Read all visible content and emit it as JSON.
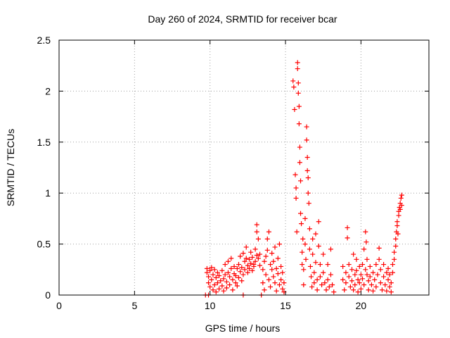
{
  "chart_data": {
    "type": "scatter",
    "title": "Day 260 of 2024, SRMTID for receiver bcar",
    "xlabel": "GPS time / hours",
    "ylabel": "SRMTID / TECUs",
    "xlim": [
      0,
      24.5
    ],
    "ylim": [
      0,
      2.5
    ],
    "xticks": [
      0,
      5,
      10,
      15,
      20
    ],
    "xtick_labels": [
      "0",
      "5",
      "10",
      "15",
      "20"
    ],
    "yticks": [
      0,
      0.5,
      1,
      1.5,
      2,
      2.5
    ],
    "ytick_labels": [
      "0",
      "0.5",
      "1",
      "1.5",
      "2",
      "2.5"
    ],
    "grid": true,
    "marker": "+",
    "color": "#ff0000",
    "series": [
      {
        "name": "bcar",
        "points": [
          [
            9.7,
            0.0
          ],
          [
            9.9,
            0.0
          ],
          [
            12.2,
            0.0
          ],
          [
            13.4,
            0.0
          ],
          [
            9.8,
            0.26
          ],
          [
            9.8,
            0.22
          ],
          [
            9.9,
            0.18
          ],
          [
            9.9,
            0.12
          ],
          [
            10.0,
            0.08
          ],
          [
            10.0,
            0.24
          ],
          [
            10.1,
            0.27
          ],
          [
            10.1,
            0.15
          ],
          [
            10.2,
            0.05
          ],
          [
            10.2,
            0.2
          ],
          [
            10.3,
            0.1
          ],
          [
            10.3,
            0.25
          ],
          [
            10.4,
            0.17
          ],
          [
            10.4,
            0.03
          ],
          [
            10.5,
            0.22
          ],
          [
            10.5,
            0.12
          ],
          [
            10.6,
            0.06
          ],
          [
            10.6,
            0.19
          ],
          [
            10.7,
            0.14
          ],
          [
            10.8,
            0.09
          ],
          [
            10.8,
            0.24
          ],
          [
            10.9,
            0.16
          ],
          [
            10.9,
            0.04
          ],
          [
            11.0,
            0.2
          ],
          [
            11.0,
            0.3
          ],
          [
            11.1,
            0.13
          ],
          [
            11.1,
            0.07
          ],
          [
            11.2,
            0.22
          ],
          [
            11.2,
            0.33
          ],
          [
            11.3,
            0.18
          ],
          [
            11.3,
            0.1
          ],
          [
            11.4,
            0.26
          ],
          [
            11.4,
            0.36
          ],
          [
            11.5,
            0.15
          ],
          [
            11.5,
            0.05
          ],
          [
            11.6,
            0.21
          ],
          [
            11.6,
            0.28
          ],
          [
            11.7,
            0.12
          ],
          [
            11.7,
            0.19
          ],
          [
            11.8,
            0.26
          ],
          [
            11.8,
            0.09
          ],
          [
            11.9,
            0.3
          ],
          [
            11.9,
            0.17
          ],
          [
            12.0,
            0.23
          ],
          [
            12.0,
            0.38
          ],
          [
            12.1,
            0.14
          ],
          [
            12.1,
            0.27
          ],
          [
            12.2,
            0.2
          ],
          [
            12.2,
            0.41
          ],
          [
            12.3,
            0.33
          ],
          [
            12.3,
            0.25
          ],
          [
            12.4,
            0.36
          ],
          [
            12.4,
            0.47
          ],
          [
            12.5,
            0.29
          ],
          [
            12.5,
            0.22
          ],
          [
            12.6,
            0.35
          ],
          [
            12.6,
            0.26
          ],
          [
            12.7,
            0.31
          ],
          [
            12.7,
            0.42
          ],
          [
            12.8,
            0.24
          ],
          [
            12.8,
            0.37
          ],
          [
            12.9,
            0.3
          ],
          [
            12.9,
            0.28
          ],
          [
            13.0,
            0.33
          ],
          [
            13.0,
            0.45
          ],
          [
            13.1,
            0.39
          ],
          [
            13.1,
            0.69
          ],
          [
            13.1,
            0.62
          ],
          [
            13.2,
            0.55
          ],
          [
            13.2,
            0.36
          ],
          [
            13.3,
            0.4
          ],
          [
            13.3,
            0.29
          ],
          [
            13.5,
            0.25
          ],
          [
            13.5,
            0.12
          ],
          [
            13.6,
            0.33
          ],
          [
            13.6,
            0.05
          ],
          [
            13.7,
            0.2
          ],
          [
            13.7,
            0.38
          ],
          [
            13.8,
            0.55
          ],
          [
            13.8,
            0.44
          ],
          [
            13.9,
            0.62
          ],
          [
            13.9,
            0.15
          ],
          [
            14.0,
            0.3
          ],
          [
            14.0,
            0.08
          ],
          [
            14.1,
            0.25
          ],
          [
            14.1,
            0.41
          ],
          [
            14.2,
            0.18
          ],
          [
            14.2,
            0.33
          ],
          [
            14.3,
            0.47
          ],
          [
            14.3,
            0.12
          ],
          [
            14.4,
            0.26
          ],
          [
            14.4,
            0.04
          ],
          [
            14.5,
            0.21
          ],
          [
            14.5,
            0.36
          ],
          [
            14.6,
            0.5
          ],
          [
            14.6,
            0.1
          ],
          [
            14.7,
            0.28
          ],
          [
            14.7,
            0.15
          ],
          [
            14.8,
            0.06
          ],
          [
            14.8,
            0.22
          ],
          [
            14.9,
            0.03
          ],
          [
            14.9,
            0.12
          ],
          [
            15.5,
            2.1
          ],
          [
            15.55,
            2.04
          ],
          [
            15.6,
            1.82
          ],
          [
            15.65,
            1.18
          ],
          [
            15.7,
            1.05
          ],
          [
            15.7,
            0.95
          ],
          [
            15.75,
            0.62
          ],
          [
            15.8,
            2.28
          ],
          [
            15.8,
            2.22
          ],
          [
            15.85,
            2.08
          ],
          [
            15.85,
            1.98
          ],
          [
            15.9,
            1.85
          ],
          [
            15.9,
            1.68
          ],
          [
            15.95,
            1.45
          ],
          [
            15.95,
            1.3
          ],
          [
            16.0,
            1.12
          ],
          [
            16.0,
            0.8
          ],
          [
            16.05,
            0.7
          ],
          [
            16.1,
            0.42
          ],
          [
            16.1,
            0.3
          ],
          [
            16.15,
            0.55
          ],
          [
            16.2,
            0.25
          ],
          [
            16.2,
            0.1
          ],
          [
            16.3,
            0.75
          ],
          [
            16.3,
            0.5
          ],
          [
            16.35,
            0.35
          ],
          [
            16.4,
            1.65
          ],
          [
            16.4,
            1.52
          ],
          [
            16.45,
            1.35
          ],
          [
            16.45,
            1.22
          ],
          [
            16.5,
            1.15
          ],
          [
            16.5,
            1.0
          ],
          [
            16.55,
            0.9
          ],
          [
            16.6,
            0.65
          ],
          [
            16.6,
            0.45
          ],
          [
            16.65,
            0.28
          ],
          [
            16.7,
            0.18
          ],
          [
            16.75,
            0.08
          ],
          [
            16.8,
            0.55
          ],
          [
            16.8,
            0.4
          ],
          [
            16.9,
            0.22
          ],
          [
            16.9,
            0.12
          ],
          [
            17.0,
            0.6
          ],
          [
            17.0,
            0.32
          ],
          [
            17.1,
            0.15
          ],
          [
            17.1,
            0.05
          ],
          [
            17.2,
            0.72
          ],
          [
            17.2,
            0.48
          ],
          [
            17.3,
            0.3
          ],
          [
            17.3,
            0.18
          ],
          [
            17.4,
            0.1
          ],
          [
            17.5,
            0.4
          ],
          [
            17.5,
            0.22
          ],
          [
            17.6,
            0.12
          ],
          [
            17.7,
            0.05
          ],
          [
            17.8,
            0.3
          ],
          [
            17.8,
            0.15
          ],
          [
            17.9,
            0.08
          ],
          [
            18.0,
            0.45
          ],
          [
            18.0,
            0.2
          ],
          [
            18.1,
            0.1
          ],
          [
            18.2,
            0.03
          ],
          [
            18.8,
            0.28
          ],
          [
            18.8,
            0.15
          ],
          [
            18.9,
            0.05
          ],
          [
            19.0,
            0.22
          ],
          [
            19.0,
            0.12
          ],
          [
            19.1,
            0.66
          ],
          [
            19.1,
            0.56
          ],
          [
            19.2,
            0.3
          ],
          [
            19.2,
            0.18
          ],
          [
            19.3,
            0.08
          ],
          [
            19.4,
            0.25
          ],
          [
            19.4,
            0.14
          ],
          [
            19.5,
            0.4
          ],
          [
            19.5,
            0.05
          ],
          [
            19.6,
            0.2
          ],
          [
            19.6,
            0.1
          ],
          [
            19.7,
            0.35
          ],
          [
            19.7,
            0.24
          ],
          [
            19.8,
            0.15
          ],
          [
            19.8,
            0.03
          ],
          [
            19.9,
            0.28
          ],
          [
            19.9,
            0.12
          ],
          [
            20.0,
            0.2
          ],
          [
            20.0,
            0.06
          ],
          [
            20.1,
            0.3
          ],
          [
            20.1,
            0.16
          ],
          [
            20.2,
            0.45
          ],
          [
            20.2,
            0.1
          ],
          [
            20.3,
            0.25
          ],
          [
            20.3,
            0.62
          ],
          [
            20.35,
            0.52
          ],
          [
            20.4,
            0.35
          ],
          [
            20.4,
            0.2
          ],
          [
            20.5,
            0.14
          ],
          [
            20.5,
            0.05
          ],
          [
            20.6,
            0.28
          ],
          [
            20.6,
            0.18
          ],
          [
            20.7,
            0.1
          ],
          [
            20.8,
            0.22
          ],
          [
            20.8,
            0.04
          ],
          [
            20.9,
            0.15
          ],
          [
            21.0,
            0.3
          ],
          [
            21.0,
            0.08
          ],
          [
            21.1,
            0.2
          ],
          [
            21.2,
            0.46
          ],
          [
            21.2,
            0.35
          ],
          [
            21.3,
            0.12
          ],
          [
            21.3,
            0.25
          ],
          [
            21.4,
            0.05
          ],
          [
            21.5,
            0.18
          ],
          [
            21.5,
            0.3
          ],
          [
            21.6,
            0.1
          ],
          [
            21.7,
            0.22
          ],
          [
            21.7,
            0.04
          ],
          [
            21.8,
            0.15
          ],
          [
            21.8,
            0.26
          ],
          [
            21.9,
            0.08
          ],
          [
            21.9,
            0.2
          ],
          [
            22.0,
            0.12
          ],
          [
            22.0,
            0.03
          ],
          [
            22.1,
            0.3
          ],
          [
            22.1,
            0.22
          ],
          [
            22.2,
            0.35
          ],
          [
            22.2,
            0.42
          ],
          [
            22.3,
            0.48
          ],
          [
            22.3,
            0.55
          ],
          [
            22.35,
            0.62
          ],
          [
            22.4,
            0.68
          ],
          [
            22.4,
            0.72
          ],
          [
            22.45,
            0.6
          ],
          [
            22.5,
            0.78
          ],
          [
            22.5,
            0.82
          ],
          [
            22.55,
            0.86
          ],
          [
            22.6,
            0.9
          ],
          [
            22.6,
            0.84
          ],
          [
            22.65,
            0.95
          ],
          [
            22.7,
            0.88
          ],
          [
            22.7,
            0.98
          ]
        ]
      }
    ]
  }
}
